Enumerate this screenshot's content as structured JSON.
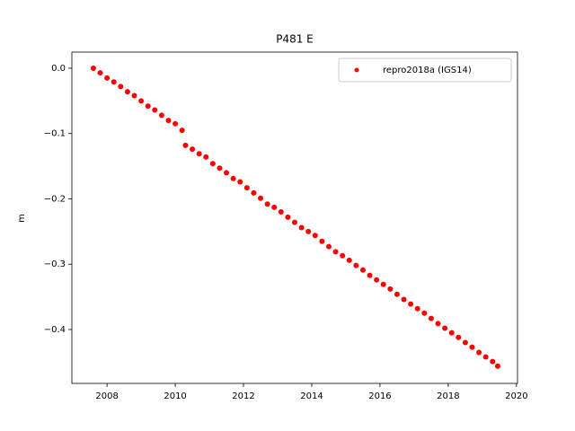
{
  "chart_data": {
    "type": "scatter",
    "title": "P481 E",
    "ylabel": "m",
    "xlim": [
      2006.97,
      2020.03
    ],
    "ylim": [
      -0.4825,
      0.0247
    ],
    "xticks": [
      2008,
      2010,
      2012,
      2014,
      2016,
      2018,
      2020
    ],
    "yticks": [
      {
        "value": 0.0,
        "label": "0.0"
      },
      {
        "value": -0.1,
        "label": "−0.1"
      },
      {
        "value": -0.2,
        "label": "−0.2"
      },
      {
        "value": -0.3,
        "label": "−0.3"
      },
      {
        "value": -0.4,
        "label": "−0.4"
      }
    ],
    "legend": "upper right",
    "series": [
      {
        "name": "repro2018a (IGS14)",
        "color": "#ff0000",
        "x": [
          2007.6,
          2007.8,
          2008.0,
          2008.2,
          2008.4,
          2008.6,
          2008.8,
          2009.0,
          2009.2,
          2009.4,
          2009.6,
          2009.8,
          2010.0,
          2010.2,
          2010.3,
          2010.5,
          2010.7,
          2010.9,
          2011.1,
          2011.3,
          2011.5,
          2011.7,
          2011.9,
          2012.1,
          2012.3,
          2012.5,
          2012.7,
          2012.9,
          2013.1,
          2013.3,
          2013.5,
          2013.7,
          2013.9,
          2014.1,
          2014.3,
          2014.5,
          2014.7,
          2014.9,
          2015.1,
          2015.3,
          2015.5,
          2015.7,
          2015.9,
          2016.1,
          2016.3,
          2016.5,
          2016.7,
          2016.9,
          2017.1,
          2017.3,
          2017.5,
          2017.7,
          2017.9,
          2018.1,
          2018.3,
          2018.5,
          2018.7,
          2018.9,
          2019.1,
          2019.3,
          2019.45
        ],
        "values": [
          0.0,
          -0.007,
          -0.015,
          -0.021,
          -0.028,
          -0.036,
          -0.042,
          -0.05,
          -0.058,
          -0.064,
          -0.072,
          -0.08,
          -0.085,
          -0.095,
          -0.118,
          -0.124,
          -0.131,
          -0.136,
          -0.146,
          -0.153,
          -0.16,
          -0.169,
          -0.174,
          -0.183,
          -0.191,
          -0.199,
          -0.208,
          -0.213,
          -0.22,
          -0.228,
          -0.236,
          -0.244,
          -0.25,
          -0.256,
          -0.265,
          -0.273,
          -0.281,
          -0.287,
          -0.294,
          -0.302,
          -0.309,
          -0.317,
          -0.324,
          -0.331,
          -0.338,
          -0.346,
          -0.354,
          -0.361,
          -0.368,
          -0.375,
          -0.383,
          -0.391,
          -0.398,
          -0.405,
          -0.412,
          -0.42,
          -0.427,
          -0.435,
          -0.442,
          -0.449,
          -0.456
        ]
      }
    ]
  }
}
